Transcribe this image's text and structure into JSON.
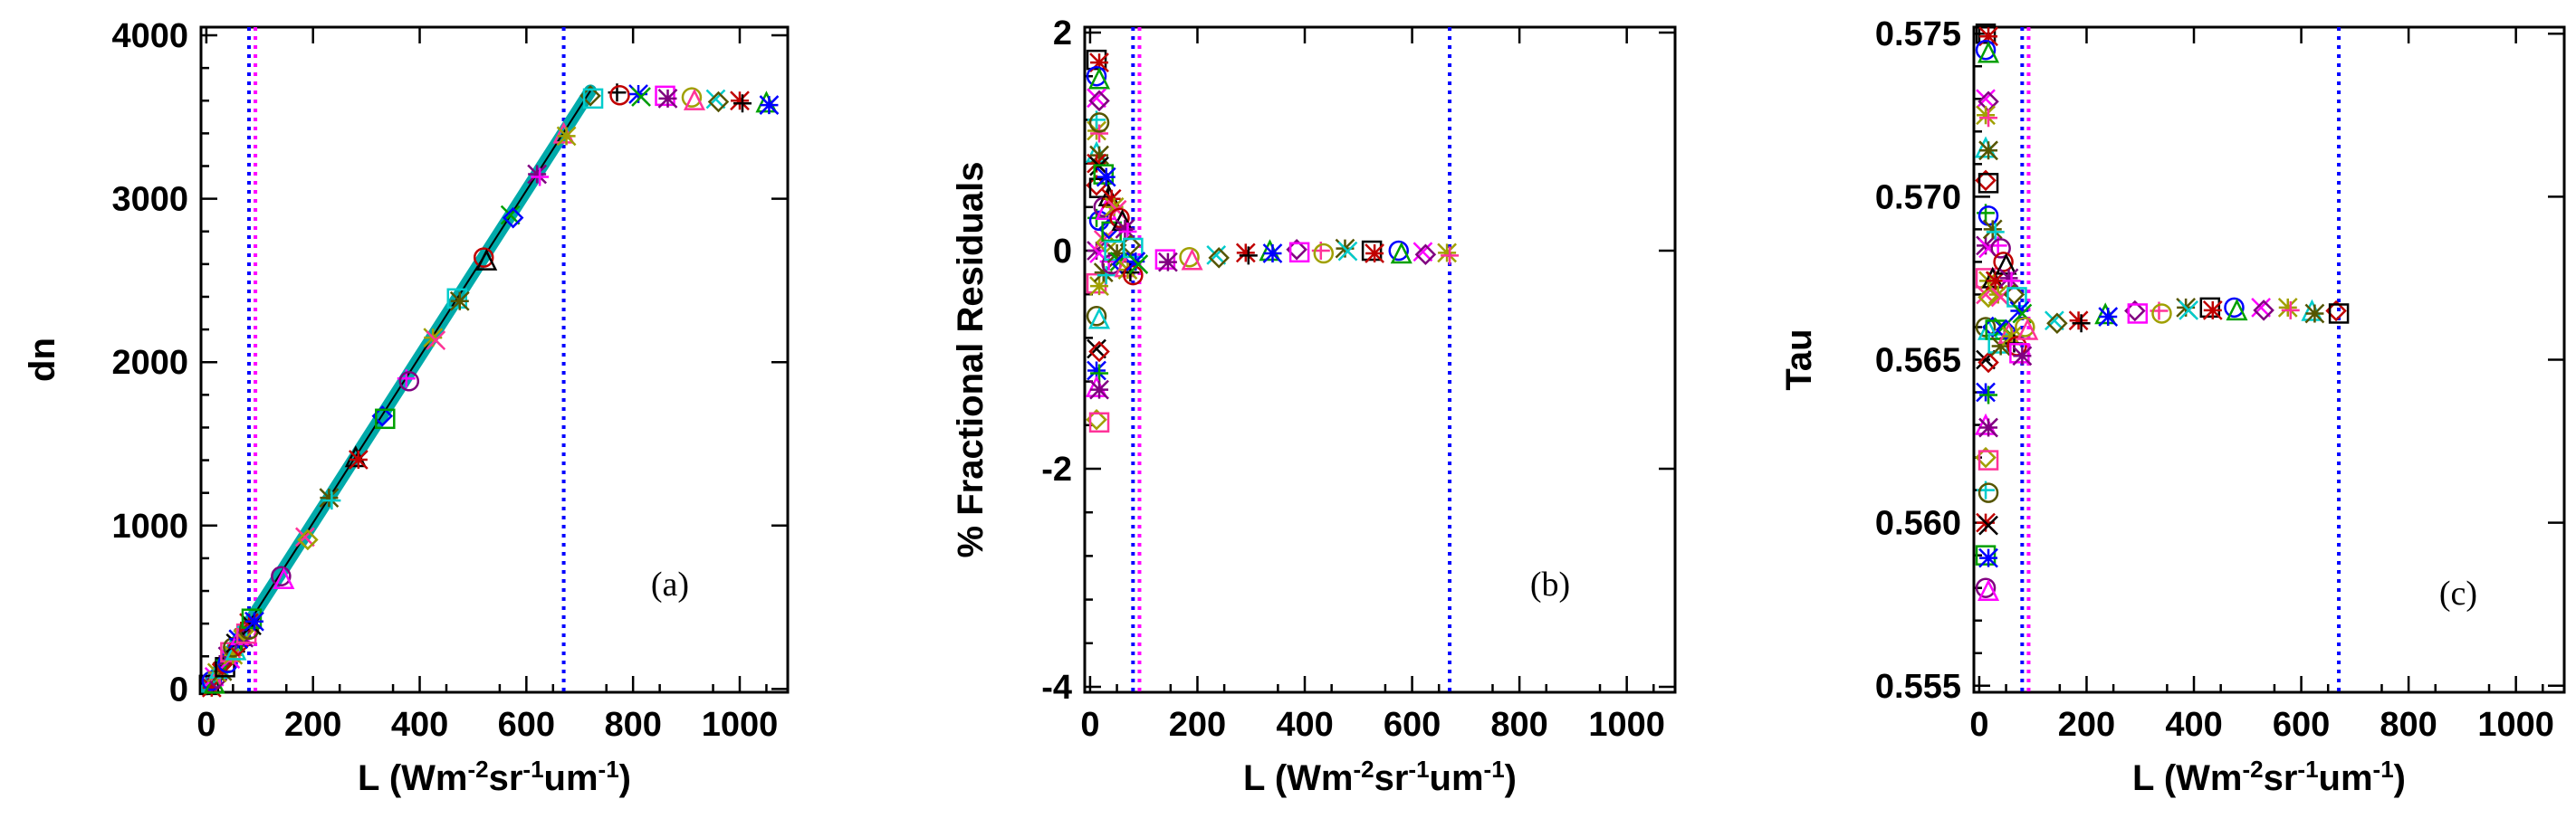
{
  "colors": {
    "axis": "#000000",
    "sat_line": "#0000ff",
    "knee_line": "#ff00ff",
    "series": [
      "#000000",
      "#0000ff",
      "#ff00ff",
      "#a0a000",
      "#00cccc",
      "#c00000",
      "#00a000",
      "#800080",
      "#ff3399",
      "#555500"
    ]
  },
  "chart_data": [
    {
      "type": "scatter",
      "panel_label": "(a)",
      "title": "",
      "xlabel": "L (Wm-2sr-1um-1)",
      "xlabel_parts": [
        "L (Wm",
        "-2",
        "sr",
        "-1",
        "um",
        "-1",
        ")"
      ],
      "ylabel": "dn",
      "xlim": [
        -10,
        1090
      ],
      "ylim": [
        -20,
        4050
      ],
      "xticks": [
        0,
        200,
        400,
        600,
        800,
        1000
      ],
      "xtick_labels": [
        "0",
        "200",
        "400",
        "600",
        "800",
        "1000"
      ],
      "yticks": [
        0,
        1000,
        2000,
        3000,
        4000
      ],
      "ytick_labels": [
        "0",
        "1000",
        "2000",
        "3000",
        "4000"
      ],
      "vlines": [
        {
          "x": 80,
          "color": "#0000ff"
        },
        {
          "x": 92,
          "color": "#ff00ff"
        },
        {
          "x": 670,
          "color": "#0000ff"
        }
      ],
      "fit_line": {
        "x": [
          0,
          720
        ],
        "y": [
          0,
          3660
        ],
        "color": "#00aaaa"
      },
      "x": [
        5,
        10,
        15,
        20,
        25,
        30,
        35,
        40,
        45,
        50,
        55,
        60,
        65,
        70,
        75,
        80,
        85,
        140,
        185,
        230,
        280,
        330,
        375,
        425,
        470,
        520,
        570,
        620,
        670,
        720,
        770,
        810,
        860,
        910,
        955,
        1000,
        1050
      ],
      "y": [
        25,
        50,
        75,
        100,
        125,
        150,
        175,
        200,
        225,
        255,
        280,
        305,
        330,
        355,
        380,
        405,
        430,
        690,
        930,
        1170,
        1420,
        1670,
        1900,
        2150,
        2390,
        2640,
        2900,
        3150,
        3400,
        3630,
        3650,
        3640,
        3630,
        3620,
        3610,
        3600,
        3590
      ]
    },
    {
      "type": "scatter",
      "panel_label": "(b)",
      "title": "",
      "xlabel": "L (Wm-2sr-1um-1)",
      "xlabel_parts": [
        "L (Wm",
        "-2",
        "sr",
        "-1",
        "um",
        "-1",
        ")"
      ],
      "ylabel": "% Fractional Residuals",
      "xlim": [
        -10,
        1090
      ],
      "ylim": [
        -4.05,
        2.05
      ],
      "xticks": [
        0,
        200,
        400,
        600,
        800,
        1000
      ],
      "xtick_labels": [
        "0",
        "200",
        "400",
        "600",
        "800",
        "1000"
      ],
      "yticks": [
        -4,
        -2,
        0,
        2
      ],
      "ytick_labels": [
        "-4",
        "-2",
        "0",
        "2"
      ],
      "vlines": [
        {
          "x": 80,
          "color": "#0000ff"
        },
        {
          "x": 92,
          "color": "#ff00ff"
        },
        {
          "x": 670,
          "color": "#0000ff"
        }
      ],
      "x": [
        12,
        12,
        12,
        12,
        12,
        12,
        12,
        12,
        12,
        12,
        12,
        12,
        12,
        12,
        12,
        12,
        25,
        25,
        25,
        25,
        35,
        35,
        35,
        45,
        45,
        55,
        55,
        65,
        65,
        75,
        75,
        85,
        140,
        185,
        235,
        290,
        335,
        385,
        430,
        475,
        525,
        575,
        620,
        665
      ],
      "y": [
        1.75,
        1.6,
        1.4,
        1.1,
        0.9,
        0.6,
        0.3,
        0.0,
        -0.3,
        -0.6,
        -0.9,
        -1.1,
        -1.25,
        -1.55,
        1.2,
        0.8,
        0.7,
        0.4,
        0.1,
        -0.2,
        0.5,
        0.2,
        -0.1,
        0.4,
        0.0,
        0.3,
        -0.1,
        0.2,
        -0.15,
        0.05,
        -0.2,
        -0.1,
        -0.08,
        -0.06,
        -0.04,
        -0.02,
        0.0,
        0.01,
        0.0,
        0.02,
        0.0,
        0.0,
        -0.01,
        -0.02
      ]
    },
    {
      "type": "scatter",
      "panel_label": "(c)",
      "title": "",
      "xlabel": "L (Wm-2sr-1um-1)",
      "xlabel_parts": [
        "L (Wm",
        "-2",
        "sr",
        "-1",
        "um",
        "-1",
        ")"
      ],
      "ylabel": "Tau",
      "xlim": [
        -10,
        1090
      ],
      "ylim": [
        0.5548,
        0.5752
      ],
      "xticks": [
        0,
        200,
        400,
        600,
        800,
        1000
      ],
      "xtick_labels": [
        "0",
        "200",
        "400",
        "600",
        "800",
        "1000"
      ],
      "yticks": [
        0.555,
        0.56,
        0.565,
        0.57,
        0.575
      ],
      "ytick_labels": [
        "0.555",
        "0.560",
        "0.565",
        "0.570",
        "0.575"
      ],
      "vlines": [
        {
          "x": 80,
          "color": "#0000ff"
        },
        {
          "x": 92,
          "color": "#ff00ff"
        },
        {
          "x": 670,
          "color": "#0000ff"
        }
      ],
      "x": [
        12,
        12,
        12,
        12,
        12,
        12,
        12,
        12,
        12,
        12,
        12,
        12,
        12,
        12,
        12,
        12,
        12,
        12,
        12,
        25,
        25,
        25,
        35,
        35,
        35,
        45,
        45,
        55,
        55,
        65,
        65,
        75,
        75,
        85,
        140,
        185,
        235,
        290,
        335,
        385,
        430,
        475,
        525,
        575,
        620,
        665
      ],
      "y": [
        0.575,
        0.5745,
        0.573,
        0.5725,
        0.5715,
        0.5705,
        0.5695,
        0.5685,
        0.5675,
        0.566,
        0.565,
        0.564,
        0.563,
        0.562,
        0.561,
        0.56,
        0.559,
        0.558,
        0.567,
        0.569,
        0.5675,
        0.566,
        0.5685,
        0.567,
        0.5655,
        0.568,
        0.566,
        0.5675,
        0.5658,
        0.567,
        0.5655,
        0.5665,
        0.5652,
        0.566,
        0.5662,
        0.5662,
        0.5664,
        0.5665,
        0.5665,
        0.5666,
        0.5666,
        0.5666,
        0.5666,
        0.5666,
        0.5665,
        0.5665
      ]
    }
  ]
}
